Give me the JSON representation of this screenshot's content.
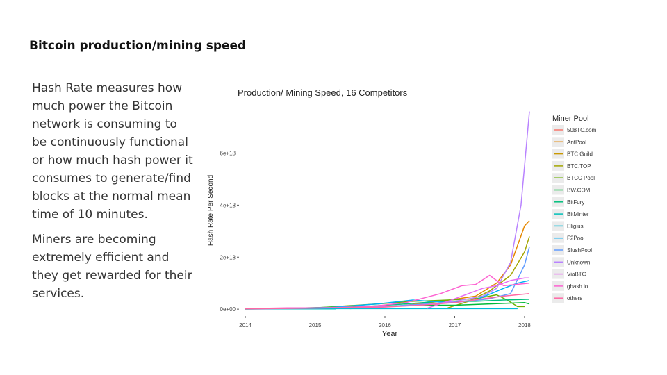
{
  "slide": {
    "title": "Bitcoin production/mining speed",
    "paragraphs": [
      "Hash Rate measures how much power the Bitcoin network is consuming to be continuously functional or how much hash power it consumes to generate/find blocks at the normal mean time of 10 minutes.",
      "Miners are becoming extremely efficient and they get rewarded for their services."
    ]
  },
  "chart_data": {
    "type": "line",
    "title": "Production/ Mining Speed, 16 Competitors",
    "xlabel": "Year",
    "ylabel": "Hash Rate Per Second",
    "xlim": [
      2013.95,
      2018.1
    ],
    "ylim": [
      -5e+16,
      7.75e+18
    ],
    "xticks": [
      2014,
      2015,
      2016,
      2017,
      2018
    ],
    "xtick_labels": [
      "2014",
      "2015",
      "2016",
      "2017",
      "2018"
    ],
    "yticks": [
      0,
      2e+18,
      4e+18,
      6e+18
    ],
    "ytick_labels": [
      "0e+00",
      "2e+18",
      "4e+18",
      "6e+18"
    ],
    "legend_title": "Miner Pool",
    "legend_position": "right",
    "grid": false,
    "series": [
      {
        "name": "50BTC.com",
        "color": "#F8766D",
        "points": [
          [
            2014.0,
            1e+16
          ],
          [
            2014.8,
            3e+16
          ],
          [
            2015.4,
            3e+16
          ]
        ]
      },
      {
        "name": "AntPool",
        "color": "#E58700",
        "points": [
          [
            2015.0,
            1e+16
          ],
          [
            2015.8,
            5e+16
          ],
          [
            2016.3,
            1.5e+17
          ],
          [
            2016.8,
            3e+17
          ],
          [
            2017.3,
            5e+17
          ],
          [
            2017.6,
            1e+18
          ],
          [
            2017.8,
            1.7e+18
          ],
          [
            2018.0,
            3.2e+18
          ],
          [
            2018.07,
            3.4e+18
          ]
        ]
      },
      {
        "name": "BTC Guild",
        "color": "#C99800",
        "points": [
          [
            2014.0,
            1e+16
          ],
          [
            2014.6,
            2e+16
          ],
          [
            2015.0,
            2e+16
          ]
        ]
      },
      {
        "name": "BTC.TOP",
        "color": "#A3A500",
        "points": [
          [
            2016.9,
            5e+16
          ],
          [
            2017.2,
            3e+17
          ],
          [
            2017.5,
            7e+17
          ],
          [
            2017.8,
            1.3e+18
          ],
          [
            2018.0,
            2.2e+18
          ],
          [
            2018.07,
            2.8e+18
          ]
        ]
      },
      {
        "name": "BTCC Pool",
        "color": "#6BB100",
        "points": [
          [
            2015.0,
            5e+16
          ],
          [
            2015.9,
            2e+17
          ],
          [
            2016.4,
            3e+17
          ],
          [
            2016.9,
            3.5e+17
          ],
          [
            2017.3,
            4e+17
          ],
          [
            2017.6,
            5.5e+17
          ],
          [
            2017.75,
            3.5e+17
          ],
          [
            2017.9,
            1e+17
          ],
          [
            2018.0,
            1e+17
          ]
        ]
      },
      {
        "name": "BW.COM",
        "color": "#00BA38",
        "points": [
          [
            2015.5,
            2e+16
          ],
          [
            2016.0,
            1e+17
          ],
          [
            2016.5,
            1.5e+17
          ],
          [
            2017.0,
            1.5e+17
          ],
          [
            2017.5,
            2e+17
          ],
          [
            2018.0,
            2.5e+17
          ],
          [
            2018.07,
            2e+17
          ]
        ]
      },
      {
        "name": "BitFury",
        "color": "#00BF7D",
        "points": [
          [
            2014.3,
            1e+16
          ],
          [
            2015.0,
            6e+16
          ],
          [
            2015.7,
            1e+17
          ],
          [
            2016.3,
            2e+17
          ],
          [
            2016.8,
            3e+17
          ],
          [
            2017.3,
            3e+17
          ],
          [
            2017.7,
            3.5e+17
          ],
          [
            2018.07,
            3.8e+17
          ]
        ]
      },
      {
        "name": "BitMinter",
        "color": "#00C0B8",
        "points": [
          [
            2014.0,
            0.0
          ],
          [
            2014.5,
            1e+16
          ],
          [
            2015.3,
            1e+16
          ]
        ]
      },
      {
        "name": "Eligius",
        "color": "#00BCD8",
        "points": [
          [
            2014.0,
            1e+16
          ],
          [
            2014.7,
            2e+16
          ],
          [
            2015.3,
            2e+16
          ],
          [
            2016.0,
            2e+16
          ],
          [
            2017.0,
            2e+16
          ],
          [
            2017.9,
            2e+16
          ]
        ]
      },
      {
        "name": "F2Pool",
        "color": "#00B0F6",
        "points": [
          [
            2014.3,
            2e+16
          ],
          [
            2015.2,
            6e+16
          ],
          [
            2015.9,
            2e+17
          ],
          [
            2016.4,
            3.5e+17
          ],
          [
            2016.9,
            2.5e+17
          ],
          [
            2017.3,
            3.5e+17
          ],
          [
            2017.7,
            8e+17
          ],
          [
            2017.9,
            1e+18
          ],
          [
            2018.07,
            1.1e+18
          ]
        ]
      },
      {
        "name": "SlushPool",
        "color": "#619CFF",
        "points": [
          [
            2014.0,
            1e+16
          ],
          [
            2015.0,
            4e+16
          ],
          [
            2016.0,
            1e+17
          ],
          [
            2016.6,
            2e+17
          ],
          [
            2017.0,
            2.5e+17
          ],
          [
            2017.5,
            4e+17
          ],
          [
            2017.8,
            6e+17
          ],
          [
            2018.0,
            1.7e+18
          ],
          [
            2018.07,
            2.4e+18
          ]
        ]
      },
      {
        "name": "Unknown",
        "color": "#B983FF",
        "points": [
          [
            2014.0,
            1e+16
          ],
          [
            2015.0,
            5e+16
          ],
          [
            2016.0,
            1e+17
          ],
          [
            2016.5,
            1.5e+17
          ],
          [
            2017.0,
            3e+17
          ],
          [
            2017.4,
            5e+17
          ],
          [
            2017.6,
            8e+17
          ],
          [
            2017.8,
            1.8e+18
          ],
          [
            2017.95,
            4e+18
          ],
          [
            2018.07,
            7.6e+18
          ]
        ]
      },
      {
        "name": "ViaBTC",
        "color": "#E76BF3",
        "points": [
          [
            2016.6,
            3e+16
          ],
          [
            2016.9,
            3e+17
          ],
          [
            2017.2,
            6e+17
          ],
          [
            2017.4,
            8e+17
          ],
          [
            2017.6,
            9e+17
          ],
          [
            2017.8,
            1.1e+18
          ],
          [
            2018.0,
            1.2e+18
          ],
          [
            2018.07,
            1.2e+18
          ]
        ]
      },
      {
        "name": "ghash.io",
        "color": "#FD61D1",
        "points": [
          [
            2014.0,
            2e+16
          ],
          [
            2014.6,
            5e+16
          ],
          [
            2015.2,
            5e+16
          ],
          [
            2015.8,
            1e+17
          ],
          [
            2016.3,
            2.5e+17
          ],
          [
            2016.8,
            6e+17
          ],
          [
            2017.1,
            9e+17
          ],
          [
            2017.3,
            9.5e+17
          ],
          [
            2017.5,
            1.3e+18
          ],
          [
            2017.7,
            9e+17
          ],
          [
            2018.07,
            1e+18
          ]
        ]
      },
      {
        "name": "others",
        "color": "#FF67A4",
        "points": [
          [
            2014.0,
            1e+16
          ],
          [
            2015.0,
            4e+16
          ],
          [
            2016.0,
            8e+16
          ],
          [
            2016.5,
            1.5e+17
          ],
          [
            2017.0,
            2.5e+17
          ],
          [
            2017.4,
            4e+17
          ],
          [
            2017.7,
            5e+17
          ],
          [
            2018.07,
            6e+17
          ]
        ]
      }
    ]
  }
}
